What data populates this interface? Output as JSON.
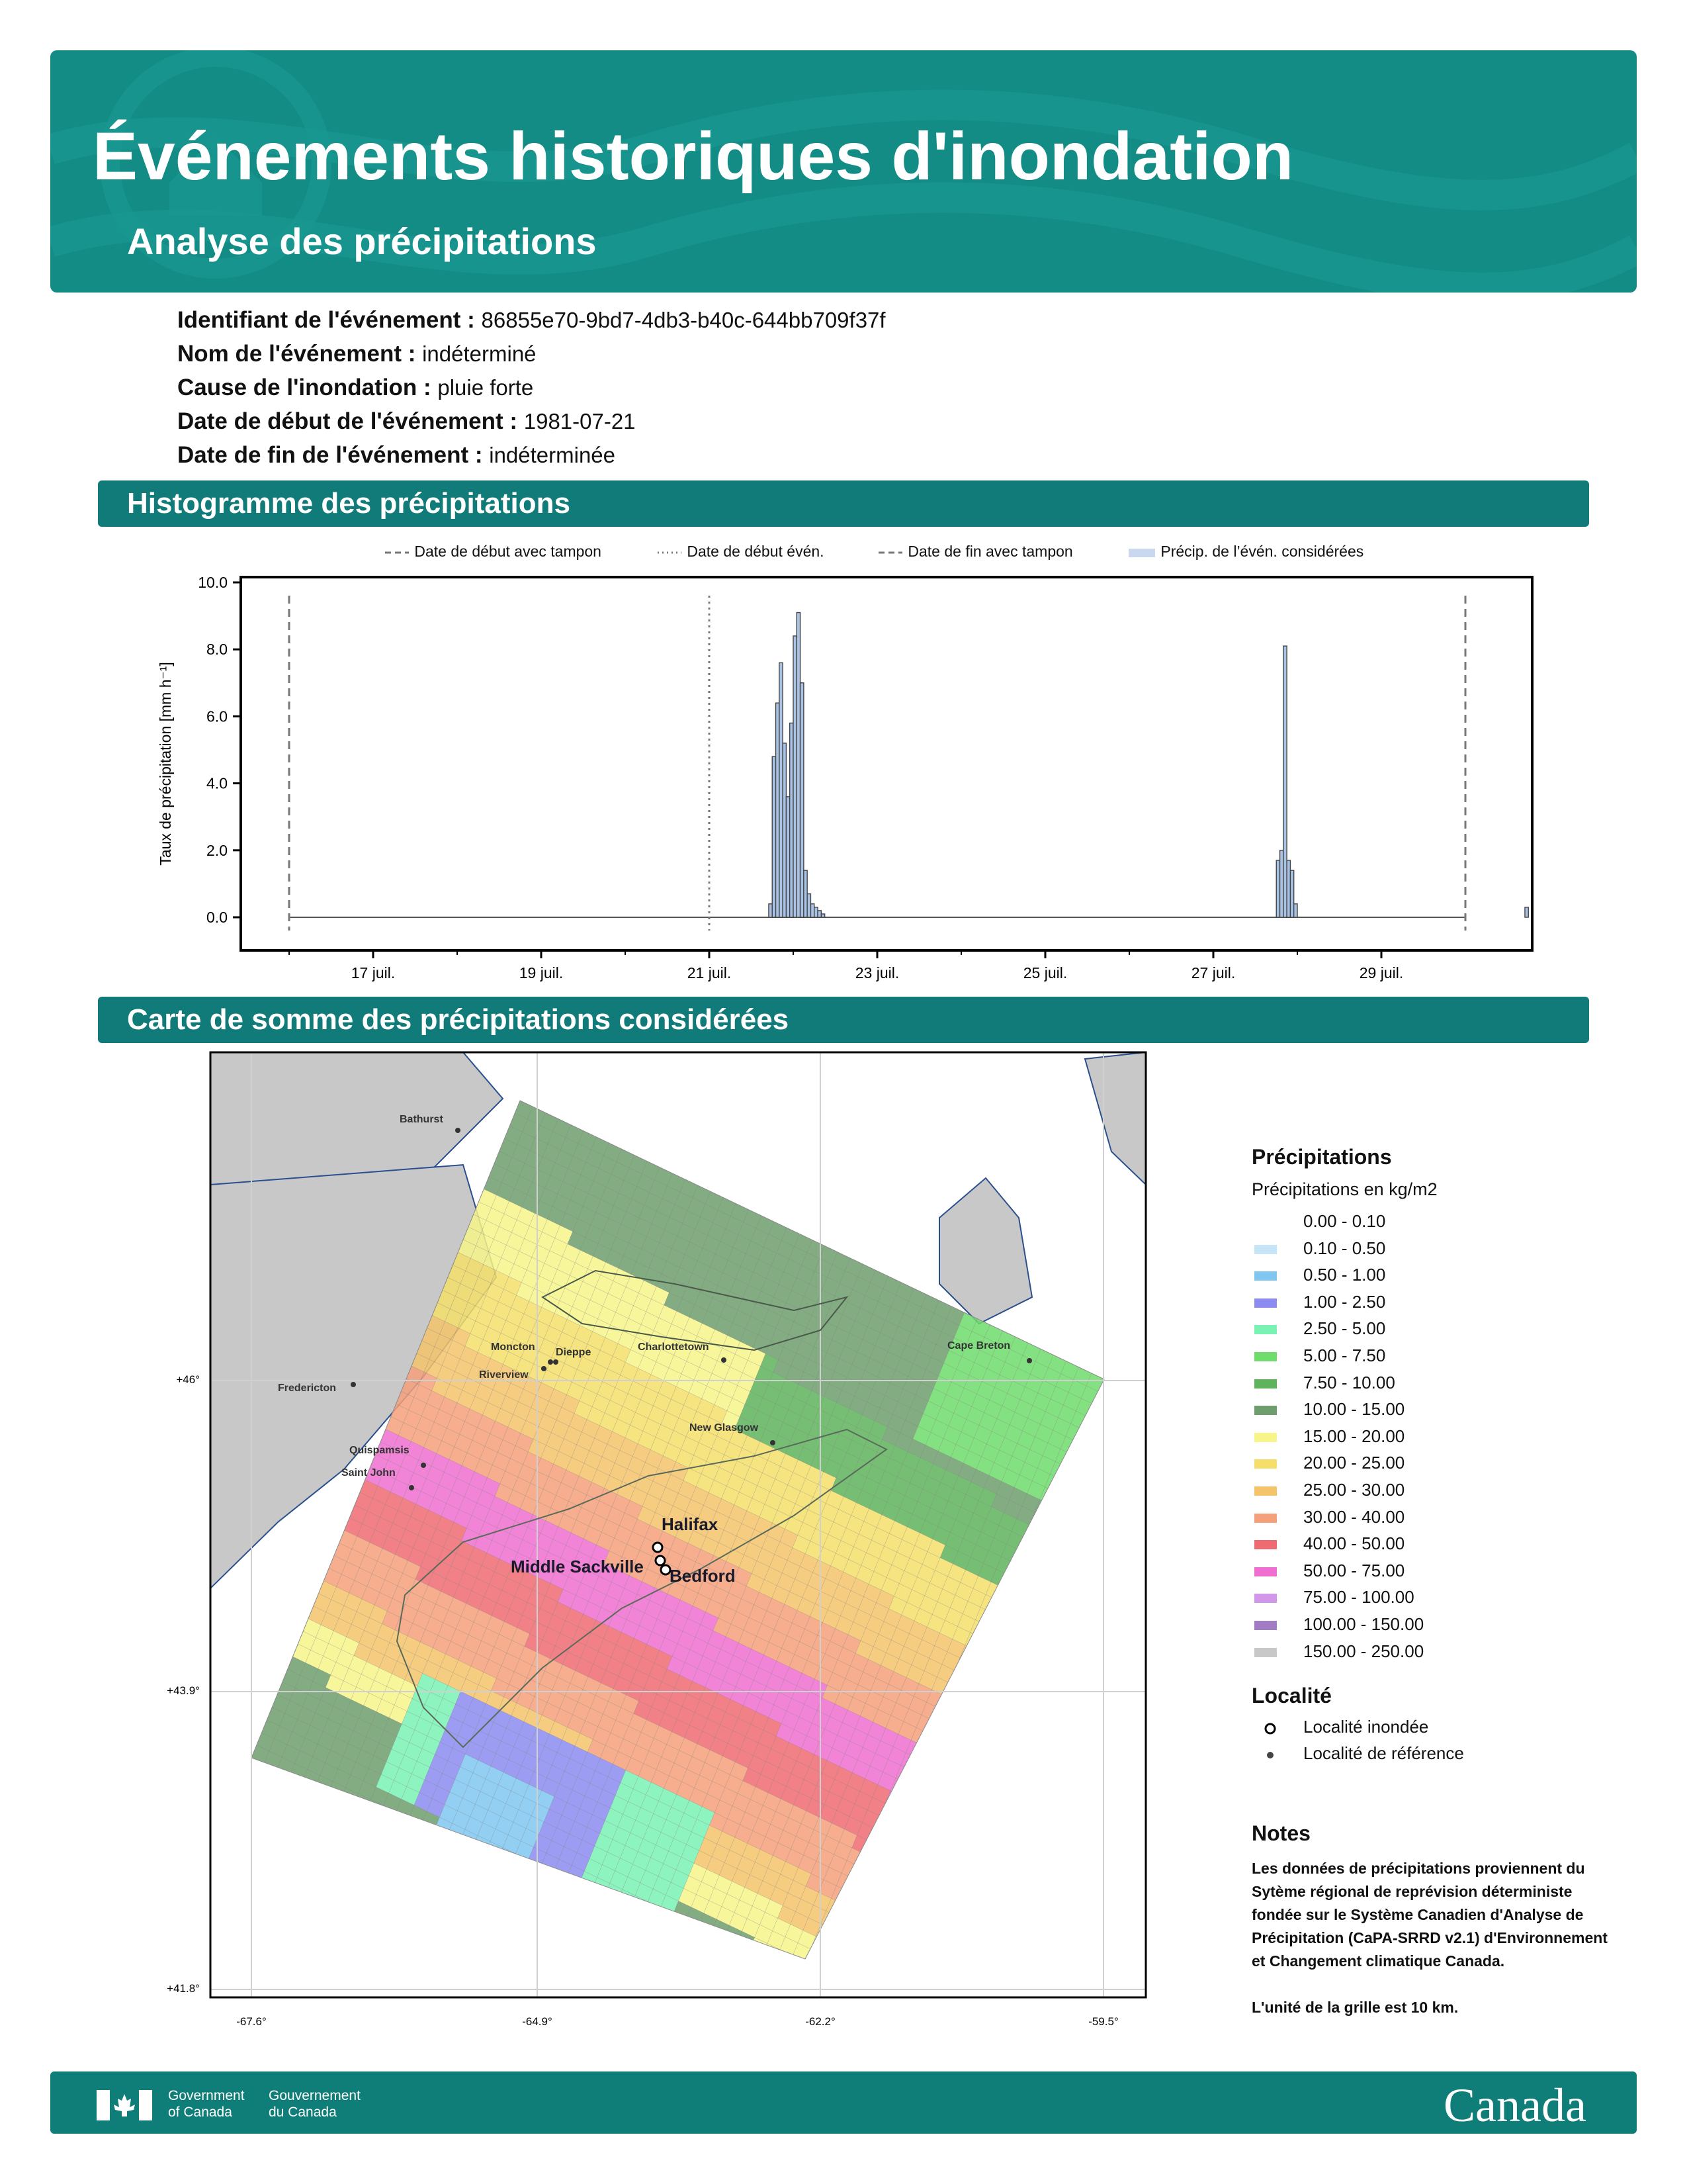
{
  "header": {
    "title": "Événements historiques d'inondation",
    "subtitle": "Analyse des précipitations"
  },
  "event": {
    "id_label": "Identifiant de l'événement :",
    "id_value": "86855e70-9bd7-4db3-b40c-644bb709f37f",
    "name_label": "Nom de l'événement :",
    "name_value": "indéterminé",
    "cause_label": "Cause de l'inondation :",
    "cause_value": "pluie forte",
    "start_label": "Date de début de l'événement :",
    "start_value": "1981-07-21",
    "end_label": "Date de fin de l'événement :",
    "end_value": "indéterminée"
  },
  "sections": {
    "histogram": "Histogramme des précipitations",
    "map": "Carte de somme des précipitations considérées"
  },
  "chart_data": {
    "type": "bar",
    "ylabel": "Taux de précipitation [mm h⁻¹]",
    "ylim": [
      0,
      10
    ],
    "yticks": [
      "0.0",
      "2.0",
      "4.0",
      "6.0",
      "8.0",
      "10.0"
    ],
    "xticks": [
      "17 juil.",
      "19 juil.",
      "21 juil.",
      "23 juil.",
      "25 juil.",
      "27 juil.",
      "29 juil."
    ],
    "legend": [
      "Date de début avec tampon",
      "Date de début évén.",
      "Date de fin avec tampon",
      "Précip. de l’évén. considérées"
    ],
    "series": [
      {
        "values": [
          {
            "x": "1981-07-21T17",
            "y": 0.4
          },
          {
            "x": "1981-07-21T18",
            "y": 4.8
          },
          {
            "x": "1981-07-21T19",
            "y": 6.4
          },
          {
            "x": "1981-07-21T20",
            "y": 7.6
          },
          {
            "x": "1981-07-21T21",
            "y": 5.2
          },
          {
            "x": "1981-07-21T22",
            "y": 3.6
          },
          {
            "x": "1981-07-21T23",
            "y": 5.8
          },
          {
            "x": "1981-07-22T00",
            "y": 8.4
          },
          {
            "x": "1981-07-22T01",
            "y": 9.1
          },
          {
            "x": "1981-07-22T02",
            "y": 7.0
          },
          {
            "x": "1981-07-22T03",
            "y": 1.4
          },
          {
            "x": "1981-07-22T04",
            "y": 0.7
          },
          {
            "x": "1981-07-22T05",
            "y": 0.4
          },
          {
            "x": "1981-07-22T06",
            "y": 0.3
          },
          {
            "x": "1981-07-22T07",
            "y": 0.2
          },
          {
            "x": "1981-07-22T08",
            "y": 0.1
          },
          {
            "x": "1981-07-27T18",
            "y": 1.7
          },
          {
            "x": "1981-07-27T19",
            "y": 2.0
          },
          {
            "x": "1981-07-27T20",
            "y": 8.1
          },
          {
            "x": "1981-07-27T21",
            "y": 1.7
          },
          {
            "x": "1981-07-27T22",
            "y": 1.4
          },
          {
            "x": "1981-07-27T23",
            "y": 0.4
          },
          {
            "x": "1981-07-30T17",
            "y": 0.3
          }
        ]
      }
    ],
    "markers": {
      "buffer_start": "1981-07-16",
      "event_start": "1981-07-21",
      "buffer_end": "1981-07-30"
    }
  },
  "map": {
    "legend_title": "Précipitations",
    "legend_subtitle": "Précipitations en kg/m2",
    "classes": [
      {
        "label": "0.00 - 0.10",
        "color": "#ffffff"
      },
      {
        "label": "0.10 - 0.50",
        "color": "#c6e6f7"
      },
      {
        "label": "0.50 - 1.00",
        "color": "#7fc7f1"
      },
      {
        "label": "1.00 - 2.50",
        "color": "#8b8bf0"
      },
      {
        "label": "2.50 - 5.00",
        "color": "#79f2b4"
      },
      {
        "label": "5.00 - 7.50",
        "color": "#6fdc6b"
      },
      {
        "label": "7.50 - 10.00",
        "color": "#5fb35d"
      },
      {
        "label": "10.00 - 15.00",
        "color": "#6e9e6d"
      },
      {
        "label": "15.00 - 20.00",
        "color": "#f7f58a"
      },
      {
        "label": "20.00 - 25.00",
        "color": "#f5df6a"
      },
      {
        "label": "25.00 - 30.00",
        "color": "#f5c46a"
      },
      {
        "label": "30.00 - 40.00",
        "color": "#f4a07a"
      },
      {
        "label": "40.00 - 50.00",
        "color": "#ef6b72"
      },
      {
        "label": "50.00 - 75.00",
        "color": "#ee6fcf"
      },
      {
        "label": "75.00 - 100.00",
        "color": "#d197e8"
      },
      {
        "label": "100.00 - 150.00",
        "color": "#a37cc6"
      },
      {
        "label": "150.00 - 250.00",
        "color": "#c8c8c8"
      }
    ],
    "locality_title": "Localité",
    "locality_flooded": "Localité inondée",
    "locality_reference": "Localité de référence",
    "notes_title": "Notes",
    "notes_text": "Les données de précipitations proviennent du Sytème régional de reprévision déterministe fondée sur le Système Canadien d'Analyse de Précipitation (CaPA-SRRD v2.1) d'Environnement et Changement climatique Canada.",
    "notes_unit": "L'unité de la grille est 10 km.",
    "lon_labels": [
      "-67.6°",
      "-64.9°",
      "-62.2°",
      "-59.5°"
    ],
    "lat_labels": [
      "+46°",
      "+43.9°",
      "+41.8°"
    ],
    "places": [
      "Bathurst",
      "Moncton",
      "Dieppe",
      "Riverview",
      "Charlottetown",
      "Cape Breton",
      "Fredericton",
      "New Glasgow",
      "Quispamsis",
      "Saint John",
      "Halifax",
      "Middle Sackville",
      "Bedford"
    ]
  },
  "footer": {
    "gov_en_1": "Government",
    "gov_en_2": "of Canada",
    "gov_fr_1": "Gouvernement",
    "gov_fr_2": "du Canada",
    "wordmark": "Canada"
  }
}
